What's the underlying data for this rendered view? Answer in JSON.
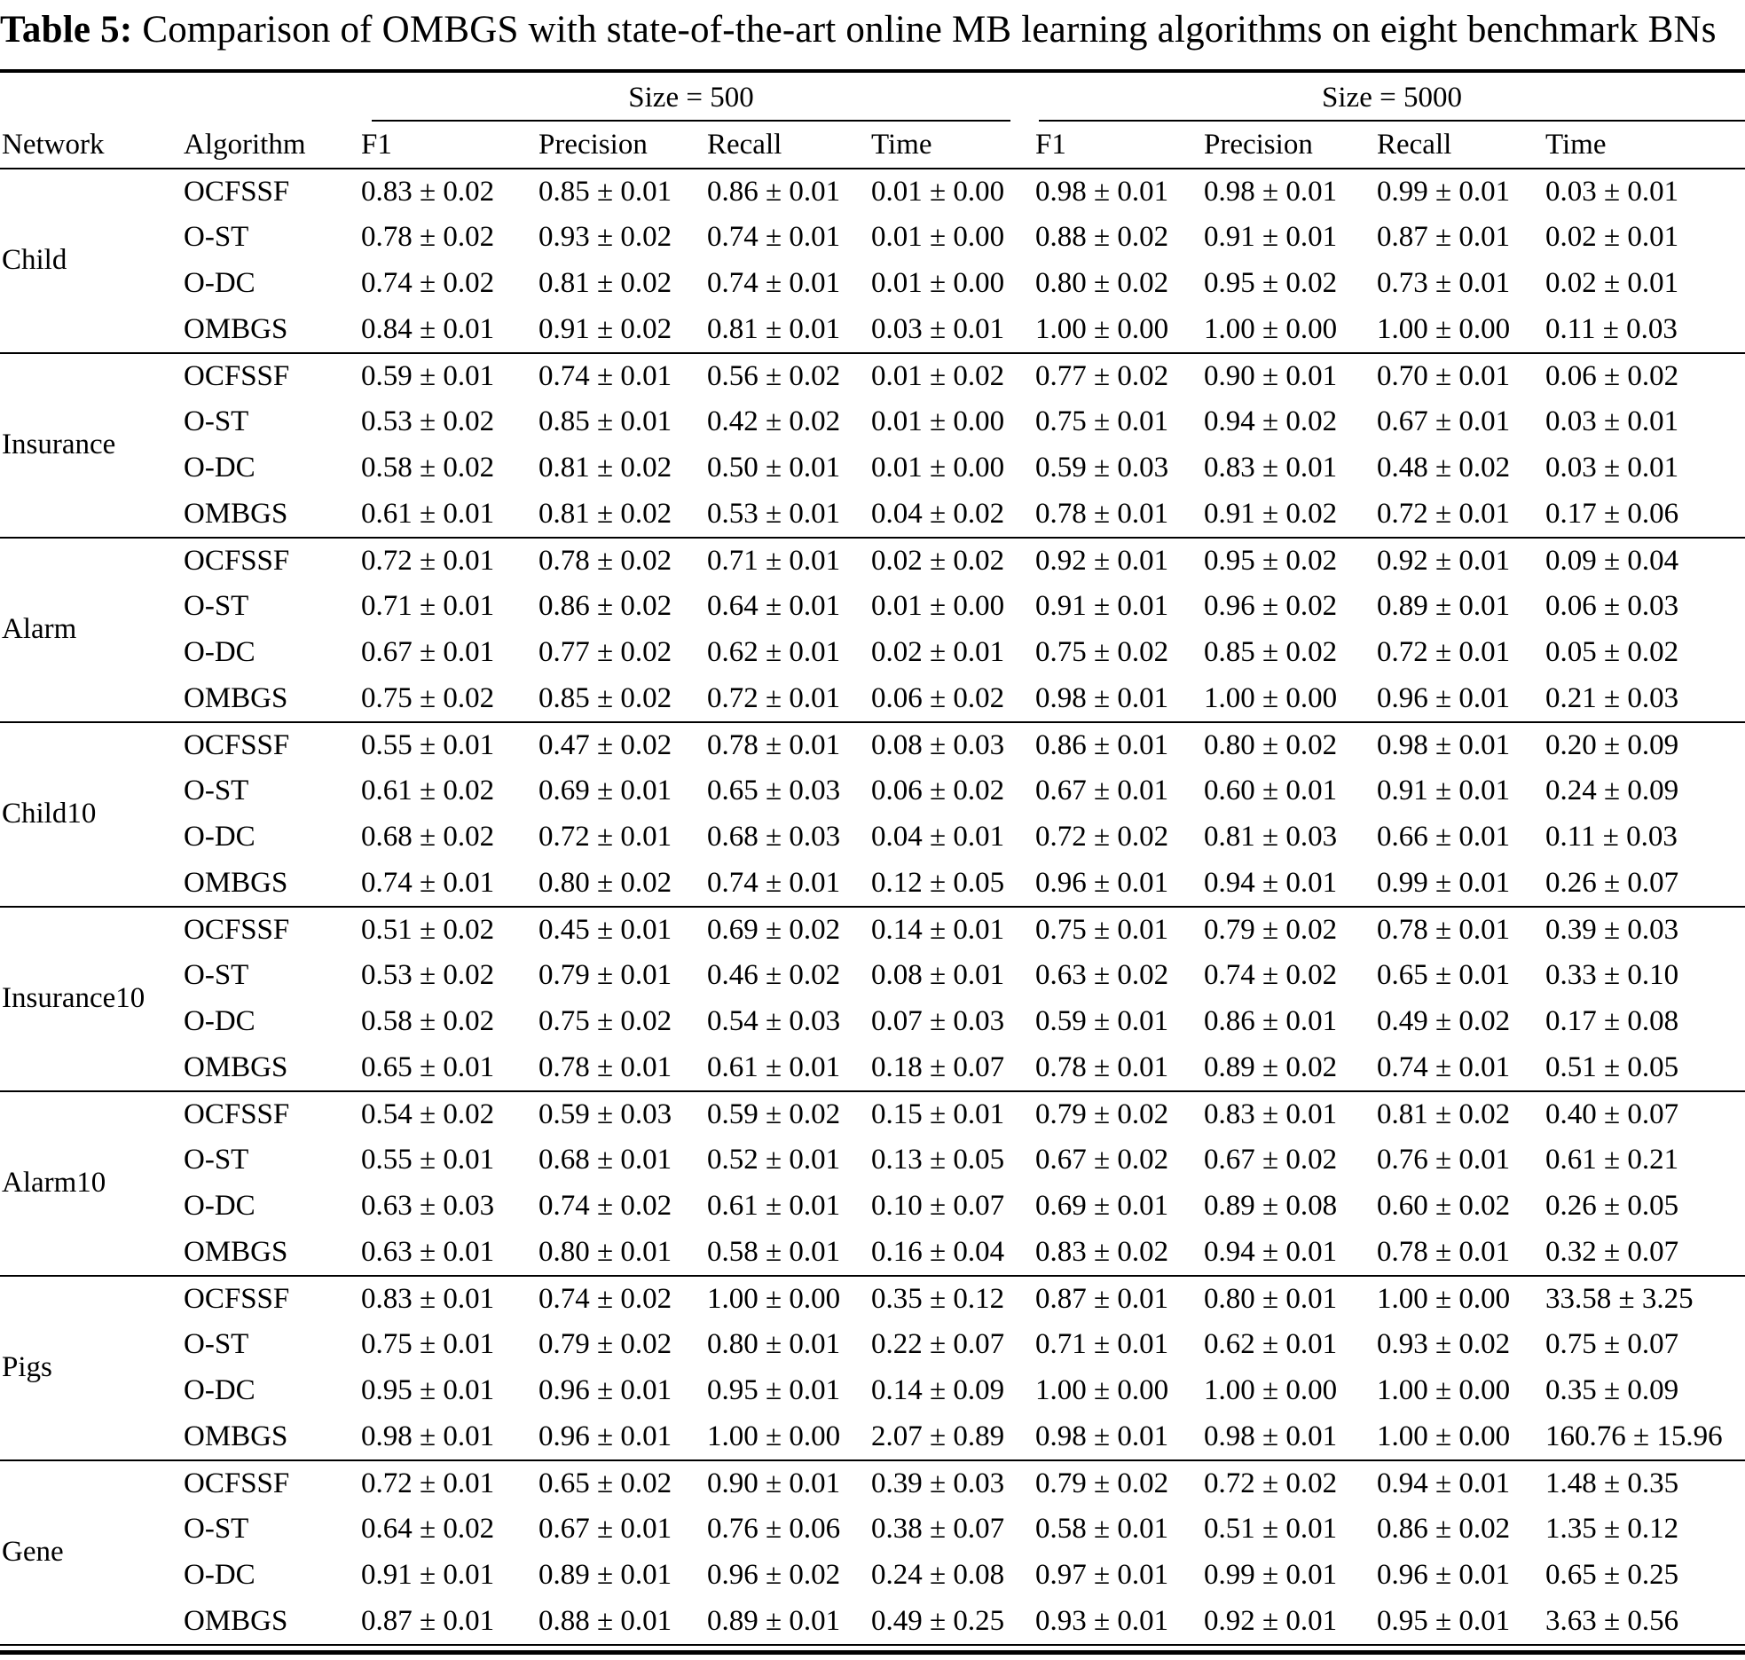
{
  "colors": {
    "text": "#000000",
    "background": "#ffffff",
    "rule": "#000000"
  },
  "title": {
    "label": "Table 5:",
    "text": "Comparison of OMBGS with state-of-the-art online MB learning algorithms on eight benchmark BNs"
  },
  "table": {
    "group_headers": [
      "Size = 500",
      "Size = 5000"
    ],
    "columns": [
      "Network",
      "Algorithm",
      "F1",
      "Precision",
      "Recall",
      "Time",
      "F1",
      "Precision",
      "Recall",
      "Time"
    ],
    "networks": [
      {
        "name": "Child",
        "rows": [
          {
            "algorithm": "OCFSSF",
            "values": [
              "0.83 ± 0.02",
              "0.85 ± 0.01",
              "0.86 ± 0.01",
              "0.01 ± 0.00",
              "0.98 ± 0.01",
              "0.98 ± 0.01",
              "0.99 ± 0.01",
              "0.03 ± 0.01"
            ],
            "bold": []
          },
          {
            "algorithm": "O-ST",
            "values": [
              "0.78 ± 0.02",
              "0.93 ± 0.02",
              "0.74 ± 0.01",
              "0.01 ± 0.00",
              "0.88 ± 0.02",
              "0.91 ± 0.01",
              "0.87 ± 0.01",
              "0.02 ± 0.01"
            ],
            "bold": []
          },
          {
            "algorithm": "O-DC",
            "values": [
              "0.74 ± 0.02",
              "0.81 ± 0.02",
              "0.74 ± 0.01",
              "0.01 ± 0.00",
              "0.80 ± 0.02",
              "0.95 ± 0.02",
              "0.73 ± 0.01",
              "0.02 ± 0.01"
            ],
            "bold": []
          },
          {
            "algorithm": "OMBGS",
            "values": [
              "0.84 ± 0.01",
              "0.91 ± 0.02",
              "0.81 ± 0.01",
              "0.03 ± 0.01",
              "1.00 ± 0.00",
              "1.00 ± 0.00",
              "1.00 ± 0.00",
              "0.11 ± 0.03"
            ],
            "bold": [
              0,
              4
            ]
          }
        ]
      },
      {
        "name": "Insurance",
        "rows": [
          {
            "algorithm": "OCFSSF",
            "values": [
              "0.59 ± 0.01",
              "0.74 ± 0.01",
              "0.56 ± 0.02",
              "0.01 ± 0.02",
              "0.77 ± 0.02",
              "0.90 ± 0.01",
              "0.70 ± 0.01",
              "0.06 ± 0.02"
            ],
            "bold": []
          },
          {
            "algorithm": "O-ST",
            "values": [
              "0.53 ± 0.02",
              "0.85 ± 0.01",
              "0.42 ± 0.02",
              "0.01 ± 0.00",
              "0.75 ± 0.01",
              "0.94 ± 0.02",
              "0.67 ± 0.01",
              "0.03 ± 0.01"
            ],
            "bold": []
          },
          {
            "algorithm": "O-DC",
            "values": [
              "0.58 ± 0.02",
              "0.81 ± 0.02",
              "0.50 ± 0.01",
              "0.01 ± 0.00",
              "0.59 ± 0.03",
              "0.83 ± 0.01",
              "0.48 ± 0.02",
              "0.03 ± 0.01"
            ],
            "bold": []
          },
          {
            "algorithm": "OMBGS",
            "values": [
              "0.61 ± 0.01",
              "0.81 ± 0.02",
              "0.53 ± 0.01",
              "0.04 ± 0.02",
              "0.78 ± 0.01",
              "0.91 ± 0.02",
              "0.72 ± 0.01",
              "0.17 ± 0.06"
            ],
            "bold": [
              0,
              4
            ]
          }
        ]
      },
      {
        "name": "Alarm",
        "rows": [
          {
            "algorithm": "OCFSSF",
            "values": [
              "0.72 ± 0.01",
              "0.78 ± 0.02",
              "0.71 ± 0.01",
              "0.02 ± 0.02",
              "0.92 ± 0.01",
              "0.95 ± 0.02",
              "0.92 ± 0.01",
              "0.09 ± 0.04"
            ],
            "bold": []
          },
          {
            "algorithm": "O-ST",
            "values": [
              "0.71 ± 0.01",
              "0.86 ± 0.02",
              "0.64 ± 0.01",
              "0.01 ± 0.00",
              "0.91 ± 0.01",
              "0.96 ± 0.02",
              "0.89 ± 0.01",
              "0.06 ± 0.03"
            ],
            "bold": []
          },
          {
            "algorithm": "O-DC",
            "values": [
              "0.67 ± 0.01",
              "0.77 ± 0.02",
              "0.62 ± 0.01",
              "0.02 ± 0.01",
              "0.75 ± 0.02",
              "0.85 ± 0.02",
              "0.72 ± 0.01",
              "0.05 ± 0.02"
            ],
            "bold": []
          },
          {
            "algorithm": "OMBGS",
            "values": [
              "0.75 ± 0.02",
              "0.85 ± 0.02",
              "0.72 ± 0.01",
              "0.06 ± 0.02",
              "0.98 ± 0.01",
              "1.00 ± 0.00",
              "0.96 ± 0.01",
              "0.21 ± 0.03"
            ],
            "bold": [
              0,
              4
            ]
          }
        ]
      },
      {
        "name": "Child10",
        "rows": [
          {
            "algorithm": "OCFSSF",
            "values": [
              "0.55 ± 0.01",
              "0.47 ± 0.02",
              "0.78 ± 0.01",
              "0.08 ± 0.03",
              "0.86 ± 0.01",
              "0.80 ± 0.02",
              "0.98 ± 0.01",
              "0.20 ± 0.09"
            ],
            "bold": []
          },
          {
            "algorithm": "O-ST",
            "values": [
              "0.61 ± 0.02",
              "0.69 ± 0.01",
              "0.65 ± 0.03",
              "0.06 ± 0.02",
              "0.67 ± 0.01",
              "0.60 ± 0.01",
              "0.91 ± 0.01",
              "0.24 ± 0.09"
            ],
            "bold": []
          },
          {
            "algorithm": "O-DC",
            "values": [
              "0.68 ± 0.02",
              "0.72 ± 0.01",
              "0.68 ± 0.03",
              "0.04 ± 0.01",
              "0.72 ± 0.02",
              "0.81 ± 0.03",
              "0.66 ± 0.01",
              "0.11 ± 0.03"
            ],
            "bold": []
          },
          {
            "algorithm": "OMBGS",
            "values": [
              "0.74 ± 0.01",
              "0.80 ± 0.02",
              "0.74 ± 0.01",
              "0.12 ± 0.05",
              "0.96 ± 0.01",
              "0.94 ± 0.01",
              "0.99 ± 0.01",
              "0.26 ± 0.07"
            ],
            "bold": [
              0,
              4
            ]
          }
        ]
      },
      {
        "name": "Insurance10",
        "rows": [
          {
            "algorithm": "OCFSSF",
            "values": [
              "0.51 ± 0.02",
              "0.45 ± 0.01",
              "0.69 ± 0.02",
              "0.14 ± 0.01",
              "0.75 ± 0.01",
              "0.79 ± 0.02",
              "0.78 ± 0.01",
              "0.39 ± 0.03"
            ],
            "bold": []
          },
          {
            "algorithm": "O-ST",
            "values": [
              "0.53 ± 0.02",
              "0.79 ± 0.01",
              "0.46 ± 0.02",
              "0.08 ± 0.01",
              "0.63 ± 0.02",
              "0.74 ± 0.02",
              "0.65 ± 0.01",
              "0.33 ± 0.10"
            ],
            "bold": []
          },
          {
            "algorithm": "O-DC",
            "values": [
              "0.58 ± 0.02",
              "0.75 ± 0.02",
              "0.54 ± 0.03",
              "0.07 ± 0.03",
              "0.59 ± 0.01",
              "0.86 ± 0.01",
              "0.49 ± 0.02",
              "0.17 ± 0.08"
            ],
            "bold": []
          },
          {
            "algorithm": "OMBGS",
            "values": [
              "0.65 ± 0.01",
              "0.78 ± 0.01",
              "0.61 ± 0.01",
              "0.18 ± 0.07",
              "0.78 ± 0.01",
              "0.89 ± 0.02",
              "0.74 ± 0.01",
              "0.51 ± 0.05"
            ],
            "bold": [
              0,
              4
            ]
          }
        ]
      },
      {
        "name": "Alarm10",
        "rows": [
          {
            "algorithm": "OCFSSF",
            "values": [
              "0.54 ± 0.02",
              "0.59 ± 0.03",
              "0.59 ± 0.02",
              "0.15 ± 0.01",
              "0.79 ± 0.02",
              "0.83 ± 0.01",
              "0.81 ± 0.02",
              "0.40 ± 0.07"
            ],
            "bold": []
          },
          {
            "algorithm": "O-ST",
            "values": [
              "0.55 ± 0.01",
              "0.68 ± 0.01",
              "0.52 ± 0.01",
              "0.13 ± 0.05",
              "0.67 ± 0.02",
              "0.67 ± 0.02",
              "0.76 ± 0.01",
              "0.61 ± 0.21"
            ],
            "bold": []
          },
          {
            "algorithm": "O-DC",
            "values": [
              "0.63 ± 0.03",
              "0.74 ± 0.02",
              "0.61 ± 0.01",
              "0.10 ± 0.07",
              "0.69 ± 0.01",
              "0.89 ± 0.08",
              "0.60 ± 0.02",
              "0.26 ± 0.05"
            ],
            "bold": []
          },
          {
            "algorithm": "OMBGS",
            "values": [
              "0.63 ± 0.01",
              "0.80 ± 0.01",
              "0.58 ± 0.01",
              "0.16 ± 0.04",
              "0.83 ± 0.02",
              "0.94 ± 0.01",
              "0.78 ± 0.01",
              "0.32 ± 0.07"
            ],
            "bold": [
              0,
              4
            ]
          }
        ]
      },
      {
        "name": "Pigs",
        "rows": [
          {
            "algorithm": "OCFSSF",
            "values": [
              "0.83 ± 0.01",
              "0.74 ± 0.02",
              "1.00 ± 0.00",
              "0.35 ± 0.12",
              "0.87 ± 0.01",
              "0.80 ± 0.01",
              "1.00 ± 0.00",
              "33.58 ± 3.25"
            ],
            "bold": []
          },
          {
            "algorithm": "O-ST",
            "values": [
              "0.75 ± 0.01",
              "0.79 ± 0.02",
              "0.80 ± 0.01",
              "0.22 ± 0.07",
              "0.71 ± 0.01",
              "0.62 ± 0.01",
              "0.93 ± 0.02",
              "0.75 ± 0.07"
            ],
            "bold": []
          },
          {
            "algorithm": "O-DC",
            "values": [
              "0.95 ± 0.01",
              "0.96 ± 0.01",
              "0.95 ± 0.01",
              "0.14 ± 0.09",
              "1.00 ± 0.00",
              "1.00 ± 0.00",
              "1.00 ± 0.00",
              "0.35 ± 0.09"
            ],
            "bold": [
              4
            ]
          },
          {
            "algorithm": "OMBGS",
            "values": [
              "0.98 ± 0.01",
              "0.96 ± 0.01",
              "1.00 ± 0.00",
              "2.07 ± 0.89",
              "0.98 ± 0.01",
              "0.98 ± 0.01",
              "1.00 ± 0.00",
              "160.76 ± 15.96"
            ],
            "bold": [
              0
            ]
          }
        ]
      },
      {
        "name": "Gene",
        "rows": [
          {
            "algorithm": "OCFSSF",
            "values": [
              "0.72 ± 0.01",
              "0.65 ± 0.02",
              "0.90 ± 0.01",
              "0.39 ± 0.03",
              "0.79 ± 0.02",
              "0.72 ± 0.02",
              "0.94 ± 0.01",
              "1.48 ± 0.35"
            ],
            "bold": []
          },
          {
            "algorithm": "O-ST",
            "values": [
              "0.64 ± 0.02",
              "0.67 ± 0.01",
              "0.76 ± 0.06",
              "0.38 ± 0.07",
              "0.58 ± 0.01",
              "0.51 ± 0.01",
              "0.86 ± 0.02",
              "1.35 ± 0.12"
            ],
            "bold": []
          },
          {
            "algorithm": "O-DC",
            "values": [
              "0.91 ± 0.01",
              "0.89 ± 0.01",
              "0.96 ± 0.02",
              "0.24 ± 0.08",
              "0.97 ± 0.01",
              "0.99 ± 0.01",
              "0.96 ± 0.01",
              "0.65 ± 0.25"
            ],
            "bold": [
              0,
              4
            ]
          },
          {
            "algorithm": "OMBGS",
            "values": [
              "0.87 ± 0.01",
              "0.88 ± 0.01",
              "0.89 ± 0.01",
              "0.49 ± 0.25",
              "0.93 ± 0.01",
              "0.92 ± 0.01",
              "0.95 ± 0.01",
              "3.63 ± 0.56"
            ],
            "bold": []
          }
        ]
      }
    ]
  }
}
